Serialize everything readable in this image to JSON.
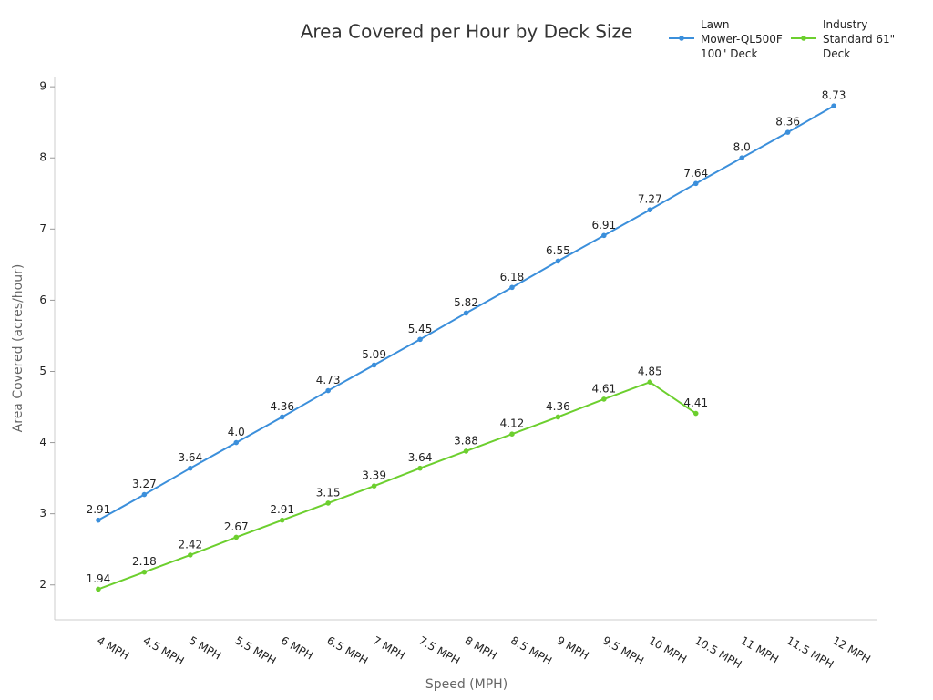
{
  "chart_data": {
    "type": "line",
    "title": "Area Covered per Hour by Deck Size",
    "x_label": "Speed (MPH)",
    "y_label": "Area Covered (acres/hour)",
    "categories": [
      "4 MPH",
      "4.5 MPH",
      "5 MPH",
      "5.5 MPH",
      "6 MPH",
      "6.5 MPH",
      "7 MPH",
      "7.5 MPH",
      "8 MPH",
      "8.5 MPH",
      "9 MPH",
      "9.5 MPH",
      "10 MPH",
      "10.5 MPH",
      "11 MPH",
      "11.5 MPH",
      "12 MPH"
    ],
    "series": [
      {
        "name": "Lawn Mower-QL500F 100\" Deck",
        "color": "#3b8fdb",
        "values": [
          2.91,
          3.27,
          3.64,
          4.0,
          4.36,
          4.73,
          5.09,
          5.45,
          5.82,
          6.18,
          6.55,
          6.91,
          7.27,
          7.64,
          8.0,
          8.36,
          8.73
        ],
        "value_labels": [
          "2.91",
          "3.27",
          "3.64",
          "4.0",
          "4.36",
          "4.73",
          "5.09",
          "5.45",
          "5.82",
          "6.18",
          "6.55",
          "6.91",
          "7.27",
          "7.64",
          "8.0",
          "8.36",
          "8.73"
        ]
      },
      {
        "name": "Industry Standard 61\" Deck",
        "color": "#6ccf2e",
        "values": [
          1.94,
          2.18,
          2.42,
          2.67,
          2.91,
          3.15,
          3.39,
          3.64,
          3.88,
          4.12,
          4.36,
          4.61,
          4.85,
          4.41,
          null,
          null,
          null
        ]
      }
    ],
    "ylim": [
      1.51,
      9.13
    ],
    "yticks": [
      2,
      3,
      4,
      5,
      6,
      7,
      8,
      9
    ],
    "grid": false,
    "legend_position": "top-right"
  }
}
